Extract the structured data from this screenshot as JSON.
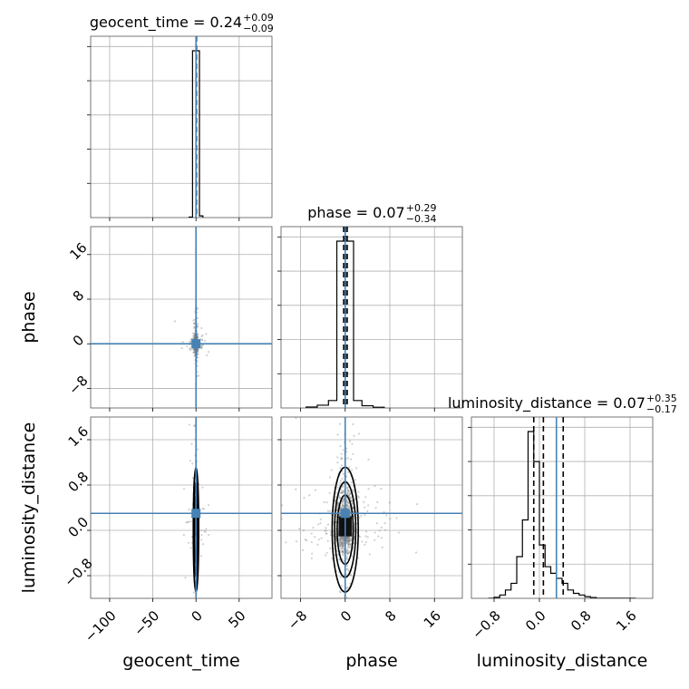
{
  "chart_data": {
    "type": "corner",
    "parameters": [
      "geocent_time",
      "phase",
      "luminosity_distance"
    ],
    "truths": {
      "geocent_time": 0.0,
      "phase": 0.0,
      "luminosity_distance": 0.3
    },
    "titles": [
      {
        "param": "geocent_time",
        "prefix": "geocent_time = 0.24",
        "plus": "+0.09",
        "minus": "−0.09"
      },
      {
        "param": "phase",
        "prefix": "phase = 0.07",
        "plus": "+0.29",
        "minus": "−0.34"
      },
      {
        "param": "luminosity_distance",
        "prefix": "luminosity_distance = 0.07",
        "plus": "+0.35",
        "minus": "−0.17"
      }
    ],
    "ranges": {
      "geocent_time": [
        -122,
        88
      ],
      "phase": [
        -11.5,
        21
      ],
      "luminosity_distance": [
        -1.2,
        2.0
      ]
    },
    "ticks": {
      "geocent_time": {
        "values": [
          -100,
          -50,
          0,
          50
        ],
        "labels": [
          "−100",
          "−50",
          "0",
          "50"
        ]
      },
      "phase": {
        "values": [
          -8,
          0,
          8,
          16
        ],
        "labels": [
          "−8",
          "0",
          "8",
          "16"
        ]
      },
      "luminosity_distance": {
        "values": [
          -0.8,
          0.0,
          0.8,
          1.6
        ],
        "labels": [
          "−0.8",
          "0.0",
          "0.8",
          "1.6"
        ]
      }
    },
    "quantiles": {
      "geocent_time": [
        0.15,
        0.24,
        0.33
      ],
      "phase": [
        -0.27,
        0.07,
        0.36
      ],
      "luminosity_distance": [
        -0.1,
        0.07,
        0.42
      ]
    },
    "hist_1d": {
      "geocent_time": {
        "edges": [
          -8,
          -4,
          0,
          4,
          8
        ],
        "counts": [
          0.003,
          1.0,
          1.0,
          0.01
        ]
      },
      "phase": {
        "edges": [
          -7,
          -5,
          -3,
          -1.5,
          0,
          1.5,
          3,
          5,
          7
        ],
        "counts": [
          0.005,
          0.015,
          0.04,
          0.9,
          0.9,
          0.04,
          0.012,
          0.004
        ]
      },
      "luminosity_distance": {
        "edges": [
          -0.9,
          -0.8,
          -0.7,
          -0.6,
          -0.5,
          -0.4,
          -0.3,
          -0.2,
          -0.1,
          0.0,
          0.1,
          0.2,
          0.3,
          0.4,
          0.5,
          0.6,
          0.7,
          0.8,
          0.9,
          1.0,
          1.1,
          1.2,
          1.3,
          1.4,
          1.5,
          1.6,
          1.7
        ],
        "counts": [
          0.0,
          0.006,
          0.02,
          0.05,
          0.09,
          0.25,
          0.47,
          1.0,
          0.82,
          0.32,
          0.19,
          0.15,
          0.12,
          0.09,
          0.05,
          0.03,
          0.02,
          0.01,
          0.005,
          0.0,
          0.0,
          0.0,
          0.0,
          0.0,
          0.0,
          0.0
        ]
      }
    },
    "axis_labels": {
      "rows": [
        "phase",
        "luminosity_distance"
      ],
      "cols": [
        "geocent_time",
        "phase",
        "luminosity_distance"
      ]
    }
  }
}
